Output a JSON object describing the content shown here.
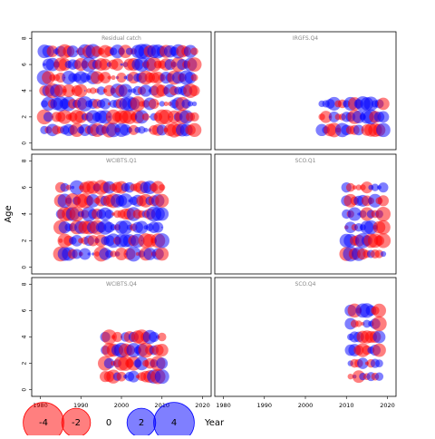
{
  "chart_data": {
    "type": "scatter",
    "subtype": "bubble-residuals",
    "ylabel": "Age",
    "legend_title": "Year",
    "x_ticks": [
      1980,
      1990,
      2000,
      2010,
      2020
    ],
    "y_ticks": [
      0,
      2,
      4,
      6,
      8
    ],
    "xlim": [
      1979,
      2021
    ],
    "ylim": [
      -0.5,
      8.5
    ],
    "legend_values": [
      -4,
      -2,
      0,
      2,
      4
    ],
    "legend_labels": [
      "-4",
      "-2",
      "0",
      "2",
      "4"
    ],
    "colors": {
      "positive": "#0000ff",
      "negative": "#ff0000",
      "fill_opacity": 0.5
    },
    "panels": [
      {
        "title": "Residual catch",
        "years": [
          1981,
          2018
        ],
        "ages": [
          1,
          7
        ],
        "has_x_ticks": false,
        "seed": 11
      },
      {
        "title": "IRGFS.Q4",
        "years": [
          2004,
          2019
        ],
        "ages": [
          1,
          3
        ],
        "has_x_ticks": false,
        "seed": 23
      },
      {
        "title": "WCIBTS.Q1",
        "years": [
          1985,
          2010
        ],
        "ages": [
          1,
          6
        ],
        "has_x_ticks": false,
        "seed": 37
      },
      {
        "title": "SCO.Q1",
        "years": [
          2010,
          2019
        ],
        "ages": [
          1,
          6
        ],
        "has_x_ticks": false,
        "seed": 41
      },
      {
        "title": "WCIBTS.Q4",
        "years": [
          1996,
          2010
        ],
        "ages": [
          1,
          4
        ],
        "has_x_ticks": true,
        "seed": 53
      },
      {
        "title": "SCO.Q4",
        "years": [
          2011,
          2018
        ],
        "ages": [
          1,
          6
        ],
        "has_x_ticks": true,
        "seed": 67
      }
    ]
  }
}
